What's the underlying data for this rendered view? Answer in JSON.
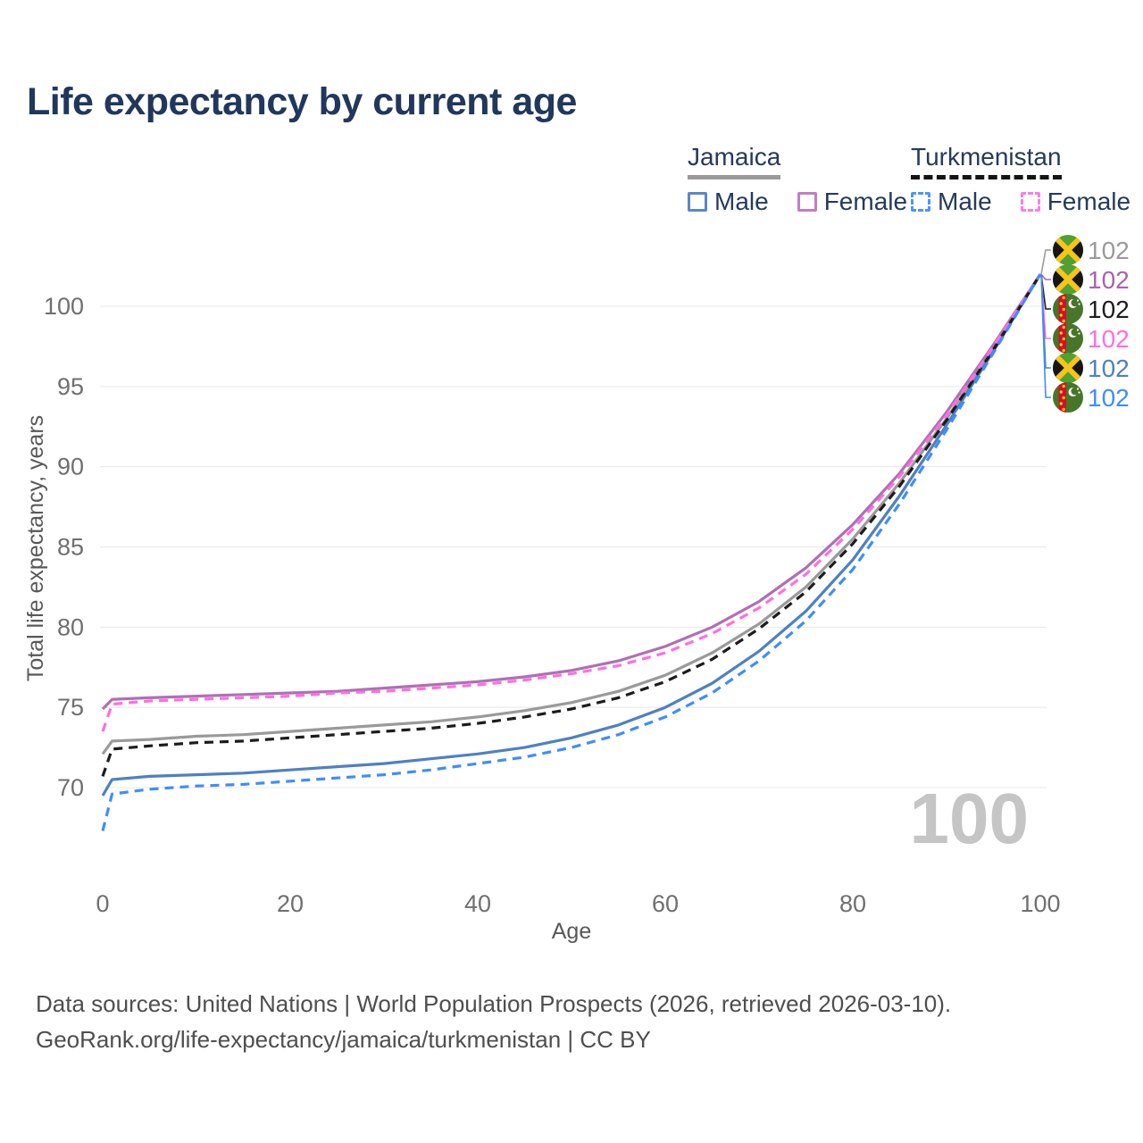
{
  "header": {
    "title": "Life expectancy by current age"
  },
  "legend": {
    "jamaica": {
      "label": "Jamaica",
      "male_label": "Male",
      "female_label": "Female"
    },
    "turkmenistan": {
      "label": "Turkmenistan",
      "male_label": "Male",
      "female_label": "Female"
    }
  },
  "chart_data": {
    "type": "line",
    "title": "Life expectancy by current age",
    "xlabel": "Age",
    "ylabel": "Total life expectancy, years",
    "x_ticks": [
      0,
      20,
      40,
      60,
      80,
      100
    ],
    "y_ticks": [
      70,
      75,
      80,
      85,
      90,
      95,
      100
    ],
    "xlim": [
      0,
      100
    ],
    "ylim": [
      66,
      103
    ],
    "grid": "horizontal-only",
    "legend_position": "top-right",
    "watermark": "100",
    "x": [
      0,
      1,
      5,
      10,
      15,
      20,
      25,
      30,
      35,
      40,
      45,
      50,
      55,
      60,
      65,
      70,
      75,
      80,
      85,
      90,
      95,
      100
    ],
    "series": [
      {
        "id": "jamaica-both",
        "name": "Jamaica",
        "sex": "Both",
        "color": "#9a9a9a",
        "dashed": false,
        "values": [
          72.1,
          72.9,
          73.0,
          73.2,
          73.3,
          73.5,
          73.7,
          73.9,
          74.1,
          74.4,
          74.8,
          75.3,
          76.0,
          77.0,
          78.4,
          80.2,
          82.5,
          85.5,
          89.0,
          93.0,
          97.4,
          102
        ]
      },
      {
        "id": "jamaica-female",
        "name": "Jamaica",
        "sex": "Female",
        "color": "#b06fb5",
        "dashed": false,
        "values": [
          74.9,
          75.5,
          75.6,
          75.7,
          75.8,
          75.9,
          76.0,
          76.2,
          76.4,
          76.6,
          76.9,
          77.3,
          77.9,
          78.8,
          80.0,
          81.6,
          83.7,
          86.4,
          89.6,
          93.4,
          97.6,
          102
        ]
      },
      {
        "id": "jamaica-male",
        "name": "Jamaica",
        "sex": "Male",
        "color": "#4f80c2",
        "dashed": false,
        "values": [
          69.5,
          70.5,
          70.7,
          70.8,
          70.9,
          71.1,
          71.3,
          71.5,
          71.8,
          72.1,
          72.5,
          73.1,
          73.9,
          75.0,
          76.5,
          78.5,
          81.0,
          84.2,
          88.2,
          92.6,
          97.2,
          102
        ]
      },
      {
        "id": "turkmenistan-both",
        "name": "Turkmenistan",
        "sex": "Both",
        "color": "#1c1c1c",
        "dashed": true,
        "values": [
          70.7,
          72.4,
          72.6,
          72.8,
          72.9,
          73.1,
          73.3,
          73.5,
          73.7,
          74.0,
          74.4,
          74.9,
          75.6,
          76.6,
          78.0,
          79.9,
          82.2,
          85.2,
          88.8,
          92.9,
          97.3,
          102
        ]
      },
      {
        "id": "turkmenistan-female",
        "name": "Turkmenistan",
        "sex": "Female",
        "color": "#ff6ee0",
        "dashed": true,
        "values": [
          73.5,
          75.2,
          75.4,
          75.5,
          75.6,
          75.7,
          75.9,
          76.0,
          76.2,
          76.4,
          76.7,
          77.1,
          77.6,
          78.4,
          79.6,
          81.2,
          83.3,
          86.1,
          89.4,
          93.2,
          97.5,
          102
        ]
      },
      {
        "id": "turkmenistan-male",
        "name": "Turkmenistan",
        "sex": "Male",
        "color": "#3f8dfd",
        "dashed": true,
        "values": [
          67.3,
          69.6,
          69.9,
          70.1,
          70.2,
          70.4,
          70.6,
          70.8,
          71.1,
          71.5,
          71.9,
          72.5,
          73.3,
          74.4,
          75.9,
          77.9,
          80.4,
          83.6,
          87.7,
          92.3,
          97.1,
          102
        ]
      }
    ],
    "right_labels": [
      {
        "flag": "jamaica",
        "value": "102",
        "color": "#9a9a9a"
      },
      {
        "flag": "jamaica",
        "value": "102",
        "color": "#a963ad"
      },
      {
        "flag": "turkmenistan",
        "value": "102",
        "color": "#1c1c1c"
      },
      {
        "flag": "turkmenistan",
        "value": "102",
        "color": "#ff6ee0"
      },
      {
        "flag": "jamaica",
        "value": "102",
        "color": "#4f80c2"
      },
      {
        "flag": "turkmenistan",
        "value": "102",
        "color": "#3f8dfd"
      }
    ],
    "flag_colors": {
      "jamaica": {
        "green": "#52a033",
        "black": "#161616",
        "gold": "#f5c518"
      },
      "turkmenistan": {
        "green": "#47762a",
        "red": "#cf1126",
        "gold": "#f2c71b",
        "white": "#ffffff"
      }
    }
  },
  "footer": {
    "line1": "Data sources: United Nations | World Population Prospects (2026, retrieved 2026-03-10).",
    "line2": "GeoRank.org/life-expectancy/jamaica/turkmenistan | CC BY"
  }
}
